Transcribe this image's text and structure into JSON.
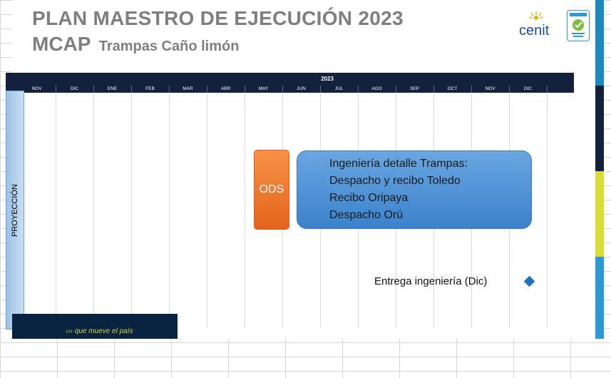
{
  "title": {
    "line1": "PLAN MAESTRO DE EJECUCIÓN 2023",
    "line2_main": "MCAP",
    "line2_sub": "Trampas Caño limón"
  },
  "logo": {
    "brand": "cenit"
  },
  "timeline": {
    "year_label": "2023",
    "months": [
      "NOV",
      "DIC",
      "ENE",
      "FEB",
      "MAR",
      "ABR",
      "MAY",
      "JUN",
      "JUL",
      "AGO",
      "SEP",
      "OCT",
      "NOV",
      "DIC"
    ],
    "phase_label": "PROYECCIÓN"
  },
  "tasks": {
    "ods_label": "ODS",
    "engineering": {
      "lines": [
        "Ingeniería detalle Trampas:",
        "Despacho y recibo Toledo",
        "Recibo Oripaya",
        "Despacho Orú"
      ]
    },
    "milestone_label": "Entrega ingeniería (Dic)"
  },
  "footer": {
    "tagline": "››› que mueve el país"
  },
  "colors": {
    "header_navy": "#14213d",
    "ods_orange": "#f08a3c",
    "engineering_blue": "#4f93d8",
    "milestone_blue": "#1f6fc2",
    "title_gray": "#7f7f7f",
    "right_bar_top": "#1a8ac2",
    "right_bar_mid": "#d9de32",
    "right_bar_bottom": "#2a9ad6"
  }
}
